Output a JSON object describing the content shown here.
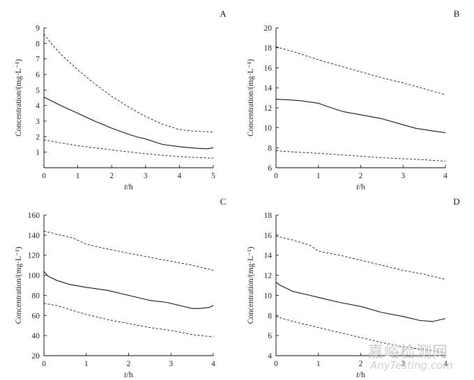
{
  "chart_data": [
    {
      "type": "line",
      "panel": "A",
      "title": "",
      "xlabel": "t/h",
      "ylabel": "Concentration/(mg·L⁻¹)",
      "xlim": [
        0,
        5
      ],
      "ylim": [
        0,
        9
      ],
      "xticks": [
        "0",
        "1",
        "2",
        "3",
        "4",
        "5"
      ],
      "yticks": [
        "1",
        "2",
        "3",
        "4",
        "5",
        "6",
        "7",
        "8",
        "9"
      ],
      "yticks_values": [
        1,
        2,
        3,
        4,
        5,
        6,
        7,
        8,
        9
      ],
      "series": [
        {
          "name": "upper",
          "style": "dashed",
          "x": [
            0,
            0.25,
            0.5,
            1,
            1.5,
            2,
            2.5,
            3,
            3.5,
            4,
            4.5,
            5
          ],
          "values": [
            8.6,
            7.9,
            7.3,
            6.3,
            5.4,
            4.6,
            3.9,
            3.3,
            2.8,
            2.45,
            2.35,
            2.3
          ]
        },
        {
          "name": "median",
          "style": "solid",
          "x": [
            0,
            0.5,
            1,
            1.5,
            2,
            2.5,
            2.8,
            3,
            3.5,
            4,
            4.5,
            4.8,
            5
          ],
          "values": [
            4.55,
            4.0,
            3.5,
            3.0,
            2.55,
            2.15,
            1.95,
            1.85,
            1.5,
            1.35,
            1.25,
            1.22,
            1.28
          ]
        },
        {
          "name": "lower",
          "style": "dashed",
          "x": [
            0,
            0.5,
            1,
            1.5,
            2,
            2.5,
            3,
            3.5,
            4,
            4.5,
            5
          ],
          "values": [
            1.8,
            1.6,
            1.42,
            1.28,
            1.15,
            1.02,
            0.9,
            0.8,
            0.72,
            0.66,
            0.62
          ]
        }
      ]
    },
    {
      "type": "line",
      "panel": "B",
      "title": "",
      "xlabel": "t/h",
      "ylabel": "Concentration/(mg·L⁻¹)",
      "xlim": [
        0,
        4
      ],
      "ylim": [
        6,
        20
      ],
      "xticks": [
        "0",
        "1",
        "2",
        "3",
        "4"
      ],
      "yticks": [
        "6",
        "8",
        "10",
        "12",
        "14",
        "16",
        "18",
        "20"
      ],
      "yticks_values": [
        6,
        8,
        10,
        12,
        14,
        16,
        18,
        20
      ],
      "series": [
        {
          "name": "upper",
          "style": "dashed",
          "x": [
            0,
            0.5,
            1,
            1.5,
            2,
            2.5,
            3,
            3.5,
            4
          ],
          "values": [
            18.1,
            17.5,
            16.8,
            16.2,
            15.6,
            15.0,
            14.5,
            13.9,
            13.3
          ]
        },
        {
          "name": "median",
          "style": "solid",
          "x": [
            0,
            0.3,
            0.6,
            1,
            1.3,
            1.6,
            2,
            2.5,
            3,
            3.3,
            3.6,
            4
          ],
          "values": [
            12.85,
            12.8,
            12.7,
            12.45,
            12.0,
            11.6,
            11.3,
            10.9,
            10.3,
            9.95,
            9.75,
            9.5
          ]
        },
        {
          "name": "lower",
          "style": "dashed",
          "x": [
            0,
            0.5,
            1,
            1.5,
            2,
            2.5,
            3,
            3.5,
            4
          ],
          "values": [
            7.7,
            7.55,
            7.45,
            7.3,
            7.15,
            7.0,
            6.9,
            6.8,
            6.65
          ]
        }
      ]
    },
    {
      "type": "line",
      "panel": "C",
      "title": "",
      "xlabel": "t/h",
      "ylabel": "Concentration/(mg·L⁻¹)",
      "xlim": [
        0,
        4
      ],
      "ylim": [
        20,
        160
      ],
      "xticks": [
        "0",
        "1",
        "2",
        "3",
        "4"
      ],
      "yticks": [
        "20",
        "40",
        "60",
        "80",
        "100",
        "120",
        "140",
        "160"
      ],
      "yticks_values": [
        20,
        40,
        60,
        80,
        100,
        120,
        140,
        160
      ],
      "series": [
        {
          "name": "upper",
          "style": "dashed",
          "x": [
            0,
            0.3,
            0.7,
            1,
            1.3,
            2,
            2.5,
            3,
            3.5,
            4
          ],
          "values": [
            144,
            141,
            137,
            131,
            128,
            122,
            118,
            114,
            110,
            105
          ]
        },
        {
          "name": "median",
          "style": "solid",
          "x": [
            0,
            0.1,
            0.3,
            0.6,
            1,
            1.5,
            2,
            2.5,
            2.9,
            3.2,
            3.5,
            3.7,
            3.9,
            4
          ],
          "values": [
            104,
            99,
            95,
            91,
            88,
            85,
            80,
            75,
            73,
            70,
            67,
            67,
            68,
            70
          ]
        },
        {
          "name": "lower",
          "style": "dashed",
          "x": [
            0,
            0.3,
            0.6,
            1,
            1.5,
            2,
            2.5,
            3,
            3.5,
            3.8,
            4
          ],
          "values": [
            72,
            70,
            66,
            61,
            56,
            52,
            48,
            45,
            41,
            39.5,
            39
          ]
        }
      ]
    },
    {
      "type": "line",
      "panel": "D",
      "title": "",
      "xlabel": "t/h",
      "ylabel": "Concentration/(mg·L⁻¹)",
      "xlim": [
        0,
        4
      ],
      "ylim": [
        4,
        18
      ],
      "xticks": [
        "0",
        "1",
        "2",
        "3",
        "4"
      ],
      "yticks": [
        "4",
        "6",
        "8",
        "10",
        "12",
        "14",
        "16",
        "18"
      ],
      "yticks_values": [
        4,
        6,
        8,
        10,
        12,
        14,
        16,
        18
      ],
      "series": [
        {
          "name": "upper",
          "style": "dashed",
          "x": [
            0,
            0.4,
            0.8,
            1,
            1.5,
            2,
            2.5,
            3,
            3.5,
            4
          ],
          "values": [
            15.9,
            15.5,
            15.0,
            14.4,
            14.0,
            13.5,
            13.0,
            12.5,
            12.1,
            11.6
          ]
        },
        {
          "name": "median",
          "style": "solid",
          "x": [
            0,
            0.1,
            0.4,
            0.8,
            1,
            1.5,
            2,
            2.5,
            3,
            3.4,
            3.7,
            3.9,
            4
          ],
          "values": [
            11.3,
            11.0,
            10.4,
            10.0,
            9.8,
            9.3,
            8.9,
            8.3,
            7.9,
            7.5,
            7.4,
            7.6,
            7.7
          ]
        },
        {
          "name": "lower",
          "style": "dashed",
          "x": [
            0,
            0.4,
            1,
            1.5,
            2,
            2.5,
            3,
            3.5,
            4
          ],
          "values": [
            7.9,
            7.4,
            6.8,
            6.3,
            5.8,
            5.3,
            4.9,
            4.6,
            4.3
          ]
        }
      ]
    }
  ],
  "watermark": {
    "line1": "嘉峪检测网",
    "line2": "AnyTesting.com"
  }
}
